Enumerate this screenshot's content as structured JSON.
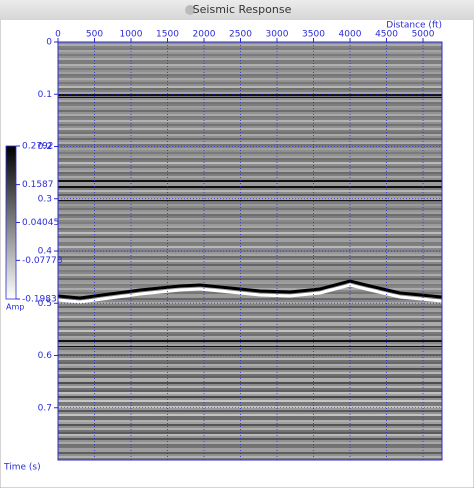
{
  "window": {
    "title": "Seismic Response"
  },
  "chart_data": {
    "type": "seismic",
    "xlabel": "Distance (ft)",
    "ylabel": "Time (s)",
    "xlim": [
      0,
      5260
    ],
    "xticks": [
      0,
      500,
      1000,
      1500,
      2000,
      2500,
      3000,
      3500,
      4000,
      4500,
      5000
    ],
    "ylim": [
      0,
      0.8
    ],
    "yticks": [
      0,
      0.1,
      0.2,
      0.3,
      0.4,
      0.5,
      0.6,
      0.7
    ],
    "grid": true,
    "axis_color": "#2b2bd6",
    "colorbar": {
      "label": "Amp",
      "lim": [
        -0.1983,
        0.2792
      ],
      "ticks": [
        0.2792,
        0.1587,
        0.04045,
        -0.07778,
        -0.1983
      ]
    }
  }
}
